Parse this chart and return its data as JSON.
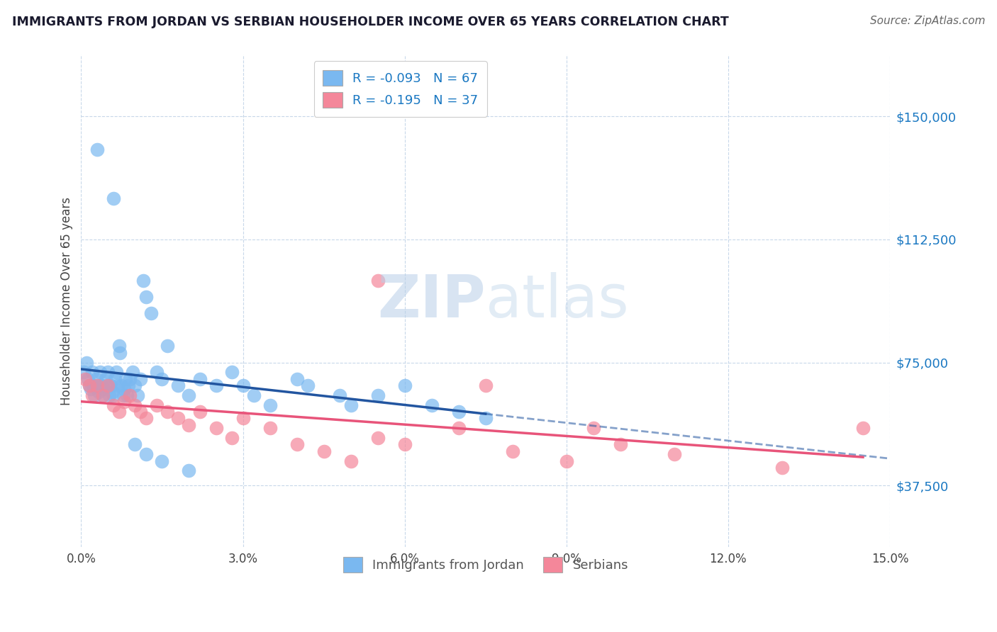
{
  "title": "IMMIGRANTS FROM JORDAN VS SERBIAN HOUSEHOLDER INCOME OVER 65 YEARS CORRELATION CHART",
  "source": "Source: ZipAtlas.com",
  "ylabel": "Householder Income Over 65 years",
  "xlim": [
    0.0,
    15.0
  ],
  "ylim": [
    18750,
    168750
  ],
  "yticks": [
    37500,
    75000,
    112500,
    150000
  ],
  "ytick_labels": [
    "$37,500",
    "$75,000",
    "$112,500",
    "$150,000"
  ],
  "xticks": [
    0.0,
    3.0,
    6.0,
    9.0,
    12.0,
    15.0
  ],
  "legend1_label": "R = -0.093   N = 67",
  "legend2_label": "R = -0.195   N = 37",
  "jordan_color": "#7ab8f0",
  "serbian_color": "#f4879a",
  "jordan_line_color": "#2255a0",
  "serbian_line_color": "#e8547a",
  "watermark_zip": "ZIP",
  "watermark_atlas": "atlas",
  "jordan_x": [
    0.05,
    0.1,
    0.12,
    0.15,
    0.18,
    0.2,
    0.22,
    0.25,
    0.28,
    0.3,
    0.32,
    0.35,
    0.38,
    0.4,
    0.42,
    0.45,
    0.48,
    0.5,
    0.52,
    0.55,
    0.58,
    0.6,
    0.62,
    0.65,
    0.68,
    0.7,
    0.72,
    0.75,
    0.78,
    0.8,
    0.82,
    0.85,
    0.88,
    0.9,
    0.95,
    1.0,
    1.05,
    1.1,
    1.15,
    1.2,
    1.3,
    1.4,
    1.5,
    1.6,
    1.8,
    2.0,
    2.2,
    2.5,
    2.8,
    3.0,
    3.2,
    3.5,
    4.0,
    4.2,
    4.8,
    5.0,
    5.5,
    6.0,
    6.5,
    7.0,
    7.5,
    0.3,
    0.6,
    1.0,
    1.2,
    1.5,
    2.0
  ],
  "jordan_y": [
    72000,
    75000,
    70000,
    68000,
    67000,
    72000,
    68000,
    65000,
    70000,
    68000,
    66000,
    72000,
    68000,
    65000,
    67000,
    70000,
    68000,
    72000,
    65000,
    68000,
    66000,
    65000,
    70000,
    72000,
    68000,
    80000,
    78000,
    68000,
    65000,
    67000,
    70000,
    65000,
    68000,
    70000,
    72000,
    68000,
    65000,
    70000,
    100000,
    95000,
    90000,
    72000,
    70000,
    80000,
    68000,
    65000,
    70000,
    68000,
    72000,
    68000,
    65000,
    62000,
    70000,
    68000,
    65000,
    62000,
    65000,
    68000,
    62000,
    60000,
    58000,
    140000,
    125000,
    50000,
    47000,
    45000,
    42000
  ],
  "serbian_x": [
    0.08,
    0.15,
    0.2,
    0.3,
    0.4,
    0.5,
    0.6,
    0.7,
    0.8,
    0.9,
    1.0,
    1.1,
    1.2,
    1.4,
    1.6,
    1.8,
    2.0,
    2.2,
    2.5,
    2.8,
    3.0,
    3.5,
    4.0,
    4.5,
    5.0,
    5.5,
    6.0,
    7.0,
    8.0,
    9.0,
    10.0,
    11.0,
    13.0,
    14.5,
    5.5,
    7.5,
    9.5
  ],
  "serbian_y": [
    70000,
    68000,
    65000,
    68000,
    65000,
    68000,
    62000,
    60000,
    63000,
    65000,
    62000,
    60000,
    58000,
    62000,
    60000,
    58000,
    56000,
    60000,
    55000,
    52000,
    58000,
    55000,
    50000,
    48000,
    45000,
    52000,
    50000,
    55000,
    48000,
    45000,
    50000,
    47000,
    43000,
    55000,
    100000,
    68000,
    55000
  ]
}
